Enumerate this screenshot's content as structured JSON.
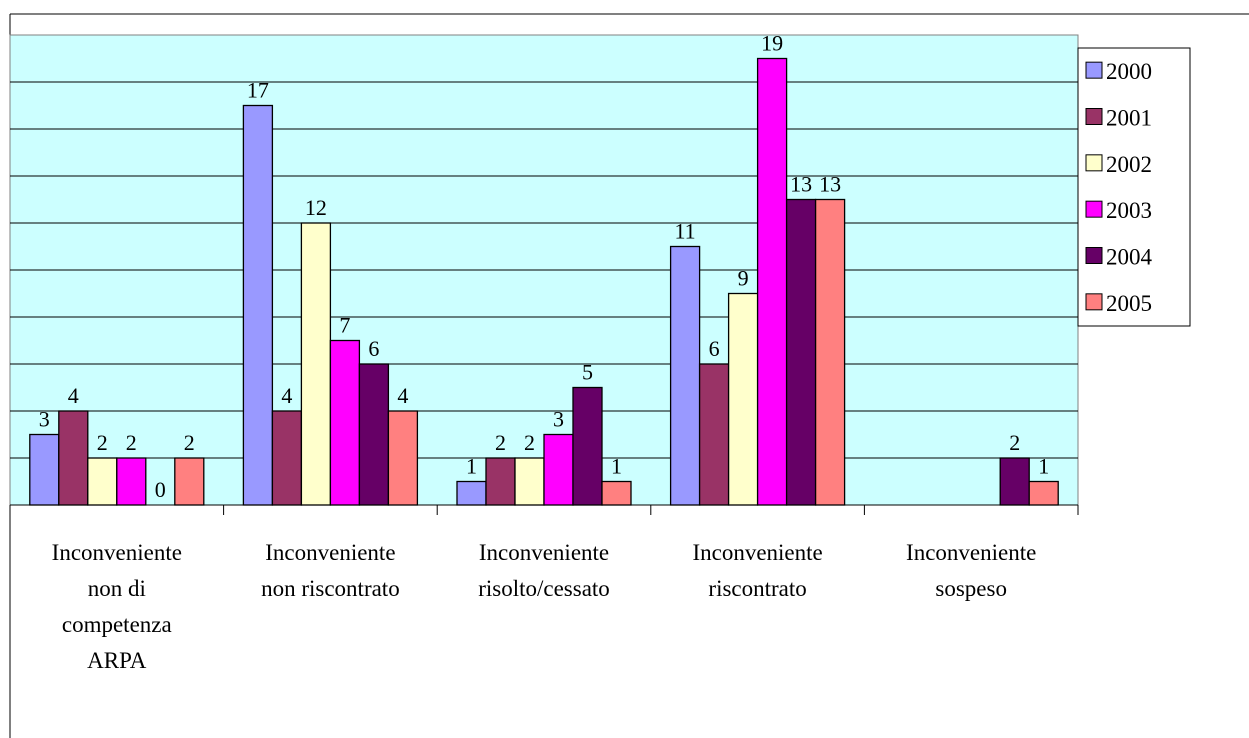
{
  "chart_data": {
    "type": "bar",
    "categories": [
      "Inconveniente non di competenza ARPA",
      "Inconveniente non riscontrato",
      "Inconveniente risolto/cessato",
      "Inconveniente riscontrato",
      "Inconveniente sospeso"
    ],
    "category_label_lines": [
      [
        "Inconveniente",
        "non di",
        "competenza",
        "ARPA"
      ],
      [
        "Inconveniente",
        "non riscontrato"
      ],
      [
        "Inconveniente",
        "risolto/cessato"
      ],
      [
        "Inconveniente",
        "riscontrato"
      ],
      [
        "Inconveniente",
        "sospeso"
      ]
    ],
    "series": [
      {
        "name": "2000",
        "color": "#9999ff",
        "values": [
          3,
          17,
          1,
          11,
          null
        ]
      },
      {
        "name": "2001",
        "color": "#993366",
        "values": [
          4,
          4,
          2,
          6,
          null
        ]
      },
      {
        "name": "2002",
        "color": "#ffffcc",
        "values": [
          2,
          12,
          2,
          9,
          null
        ]
      },
      {
        "name": "2003",
        "color": "#ff00ff",
        "values": [
          2,
          7,
          3,
          19,
          null
        ]
      },
      {
        "name": "2004",
        "color": "#660066",
        "values": [
          0,
          6,
          5,
          13,
          2
        ]
      },
      {
        "name": "2005",
        "color": "#ff8080",
        "values": [
          2,
          4,
          1,
          13,
          1
        ]
      }
    ],
    "ylim": [
      0,
      20
    ],
    "y_major_unit": 2,
    "grid": true,
    "plot_background": "#ccffff",
    "legend_position": "right",
    "title": "",
    "xlabel": "",
    "ylabel": ""
  }
}
